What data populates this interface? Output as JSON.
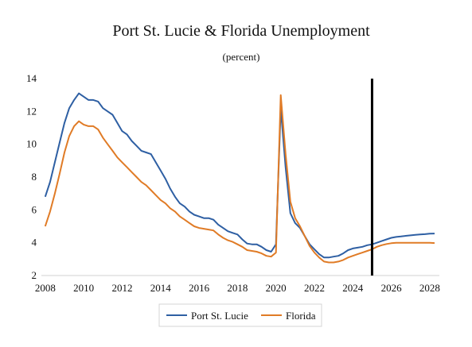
{
  "chart_data": {
    "type": "line",
    "title": "Port St. Lucie & Florida Unemployment",
    "subtitle": "(percent)",
    "xlabel": "",
    "ylabel": "",
    "xlim": [
      2007.8,
      2028.5
    ],
    "ylim": [
      2,
      14
    ],
    "x_ticks": [
      2008,
      2010,
      2012,
      2014,
      2016,
      2018,
      2020,
      2022,
      2024,
      2026,
      2028
    ],
    "y_ticks": [
      2,
      4,
      6,
      8,
      10,
      12,
      14
    ],
    "grid": false,
    "legend_position": "bottom",
    "forecast_line_x": 2025,
    "colors": {
      "Port St. Lucie": "#2e5fa3",
      "Florida": "#e07b26",
      "forecast_line": "#000000"
    },
    "series": [
      {
        "name": "Port St. Lucie",
        "x": [
          2008.0,
          2008.25,
          2008.5,
          2008.75,
          2009.0,
          2009.25,
          2009.5,
          2009.75,
          2010.0,
          2010.25,
          2010.5,
          2010.75,
          2011.0,
          2011.25,
          2011.5,
          2011.75,
          2012.0,
          2012.25,
          2012.5,
          2012.75,
          2013.0,
          2013.25,
          2013.5,
          2013.75,
          2014.0,
          2014.25,
          2014.5,
          2014.75,
          2015.0,
          2015.25,
          2015.5,
          2015.75,
          2016.0,
          2016.25,
          2016.5,
          2016.75,
          2017.0,
          2017.25,
          2017.5,
          2017.75,
          2018.0,
          2018.25,
          2018.5,
          2018.75,
          2019.0,
          2019.25,
          2019.5,
          2019.75,
          2020.0,
          2020.25,
          2020.5,
          2020.75,
          2021.0,
          2021.25,
          2021.5,
          2021.75,
          2022.0,
          2022.25,
          2022.5,
          2022.75,
          2023.0,
          2023.25,
          2023.5,
          2023.75,
          2024.0,
          2024.25,
          2024.5,
          2024.75,
          2025.0,
          2025.25,
          2025.5,
          2025.75,
          2026.0,
          2026.25,
          2026.5,
          2026.75,
          2027.0,
          2027.25,
          2027.5,
          2027.75,
          2028.0,
          2028.25
        ],
        "values": [
          6.8,
          7.7,
          8.9,
          10.1,
          11.3,
          12.2,
          12.7,
          13.1,
          12.9,
          12.7,
          12.7,
          12.6,
          12.2,
          12.0,
          11.8,
          11.3,
          10.8,
          10.6,
          10.2,
          9.9,
          9.6,
          9.5,
          9.4,
          8.9,
          8.4,
          7.9,
          7.3,
          6.8,
          6.4,
          6.2,
          5.9,
          5.7,
          5.6,
          5.5,
          5.5,
          5.4,
          5.1,
          4.9,
          4.7,
          4.6,
          4.5,
          4.2,
          3.95,
          3.9,
          3.9,
          3.75,
          3.55,
          3.45,
          3.9,
          12.2,
          8.6,
          5.8,
          5.2,
          4.9,
          4.4,
          3.9,
          3.6,
          3.3,
          3.1,
          3.1,
          3.15,
          3.2,
          3.35,
          3.55,
          3.65,
          3.7,
          3.75,
          3.85,
          3.9,
          4.0,
          4.1,
          4.2,
          4.3,
          4.35,
          4.38,
          4.42,
          4.45,
          4.48,
          4.5,
          4.52,
          4.55,
          4.56
        ]
      },
      {
        "name": "Florida",
        "x": [
          2008.0,
          2008.25,
          2008.5,
          2008.75,
          2009.0,
          2009.25,
          2009.5,
          2009.75,
          2010.0,
          2010.25,
          2010.5,
          2010.75,
          2011.0,
          2011.25,
          2011.5,
          2011.75,
          2012.0,
          2012.25,
          2012.5,
          2012.75,
          2013.0,
          2013.25,
          2013.5,
          2013.75,
          2014.0,
          2014.25,
          2014.5,
          2014.75,
          2015.0,
          2015.25,
          2015.5,
          2015.75,
          2016.0,
          2016.25,
          2016.5,
          2016.75,
          2017.0,
          2017.25,
          2017.5,
          2017.75,
          2018.0,
          2018.25,
          2018.5,
          2018.75,
          2019.0,
          2019.25,
          2019.5,
          2019.75,
          2020.0,
          2020.25,
          2020.5,
          2020.75,
          2021.0,
          2021.25,
          2021.5,
          2021.75,
          2022.0,
          2022.25,
          2022.5,
          2022.75,
          2023.0,
          2023.25,
          2023.5,
          2023.75,
          2024.0,
          2024.25,
          2024.5,
          2024.75,
          2025.0,
          2025.25,
          2025.5,
          2025.75,
          2026.0,
          2026.25,
          2026.5,
          2026.75,
          2027.0,
          2027.25,
          2027.5,
          2027.75,
          2028.0,
          2028.25
        ],
        "values": [
          5.0,
          5.9,
          7.0,
          8.2,
          9.5,
          10.5,
          11.1,
          11.4,
          11.2,
          11.1,
          11.1,
          10.9,
          10.4,
          10.0,
          9.6,
          9.2,
          8.9,
          8.6,
          8.3,
          8.0,
          7.7,
          7.5,
          7.2,
          6.9,
          6.6,
          6.4,
          6.1,
          5.9,
          5.6,
          5.4,
          5.2,
          5.0,
          4.9,
          4.85,
          4.8,
          4.75,
          4.5,
          4.3,
          4.15,
          4.05,
          3.9,
          3.75,
          3.55,
          3.5,
          3.45,
          3.35,
          3.2,
          3.15,
          3.4,
          13.0,
          9.4,
          6.5,
          5.5,
          5.0,
          4.4,
          3.8,
          3.4,
          3.1,
          2.85,
          2.8,
          2.8,
          2.85,
          2.95,
          3.1,
          3.2,
          3.3,
          3.4,
          3.5,
          3.6,
          3.75,
          3.85,
          3.92,
          3.97,
          4.0,
          4.0,
          4.0,
          4.0,
          4.0,
          4.0,
          4.0,
          4.0,
          3.98
        ]
      }
    ]
  }
}
